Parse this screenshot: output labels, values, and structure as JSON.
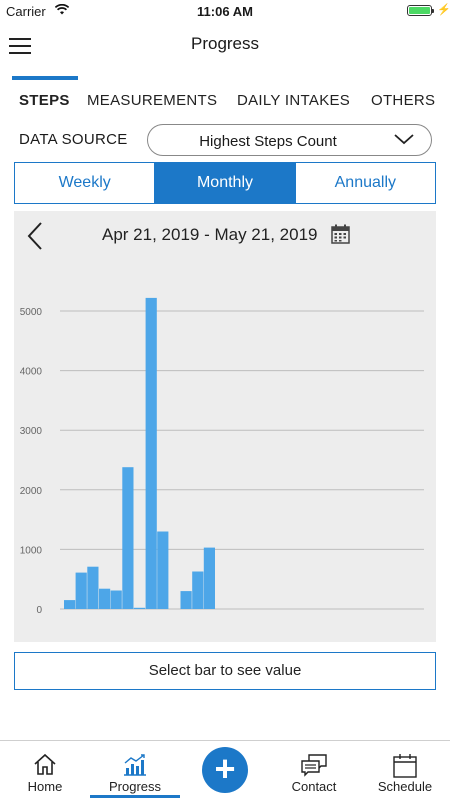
{
  "status_bar": {
    "carrier": "Carrier",
    "time": "11:06 AM",
    "battery_level": 1.0
  },
  "header": {
    "title": "Progress"
  },
  "tabs": [
    {
      "label": "STEPS",
      "active": true
    },
    {
      "label": "MEASUREMENTS",
      "active": false
    },
    {
      "label": "DAILY INTAKES",
      "active": false
    },
    {
      "label": "OTHERS",
      "active": false
    }
  ],
  "data_source": {
    "label": "DATA SOURCE",
    "value": "Highest Steps Count"
  },
  "period_tabs": [
    {
      "label": "Weekly",
      "active": false
    },
    {
      "label": "Monthly",
      "active": true
    },
    {
      "label": "Annually",
      "active": false
    }
  ],
  "chart_header": {
    "date_range": "Apr 21, 2019 - May 21, 2019"
  },
  "chart_data": {
    "type": "bar",
    "values": [
      150,
      610,
      710,
      340,
      310,
      2380,
      20,
      5220,
      1300,
      0,
      300,
      630,
      1030
    ],
    "yticks": [
      "0",
      "1000",
      "2000",
      "3000",
      "4000",
      "5000"
    ],
    "ylim": [
      0,
      5000
    ],
    "grid": true,
    "bar_color": "#4da6e8"
  },
  "select_bar_button": "Select bar to see value",
  "bottom_nav": {
    "home": "Home",
    "progress": "Progress",
    "contact": "Contact",
    "schedule": "Schedule"
  },
  "colors": {
    "accent": "#1c78c8",
    "chart_bg": "#ededed",
    "battery": "#4cd964"
  }
}
